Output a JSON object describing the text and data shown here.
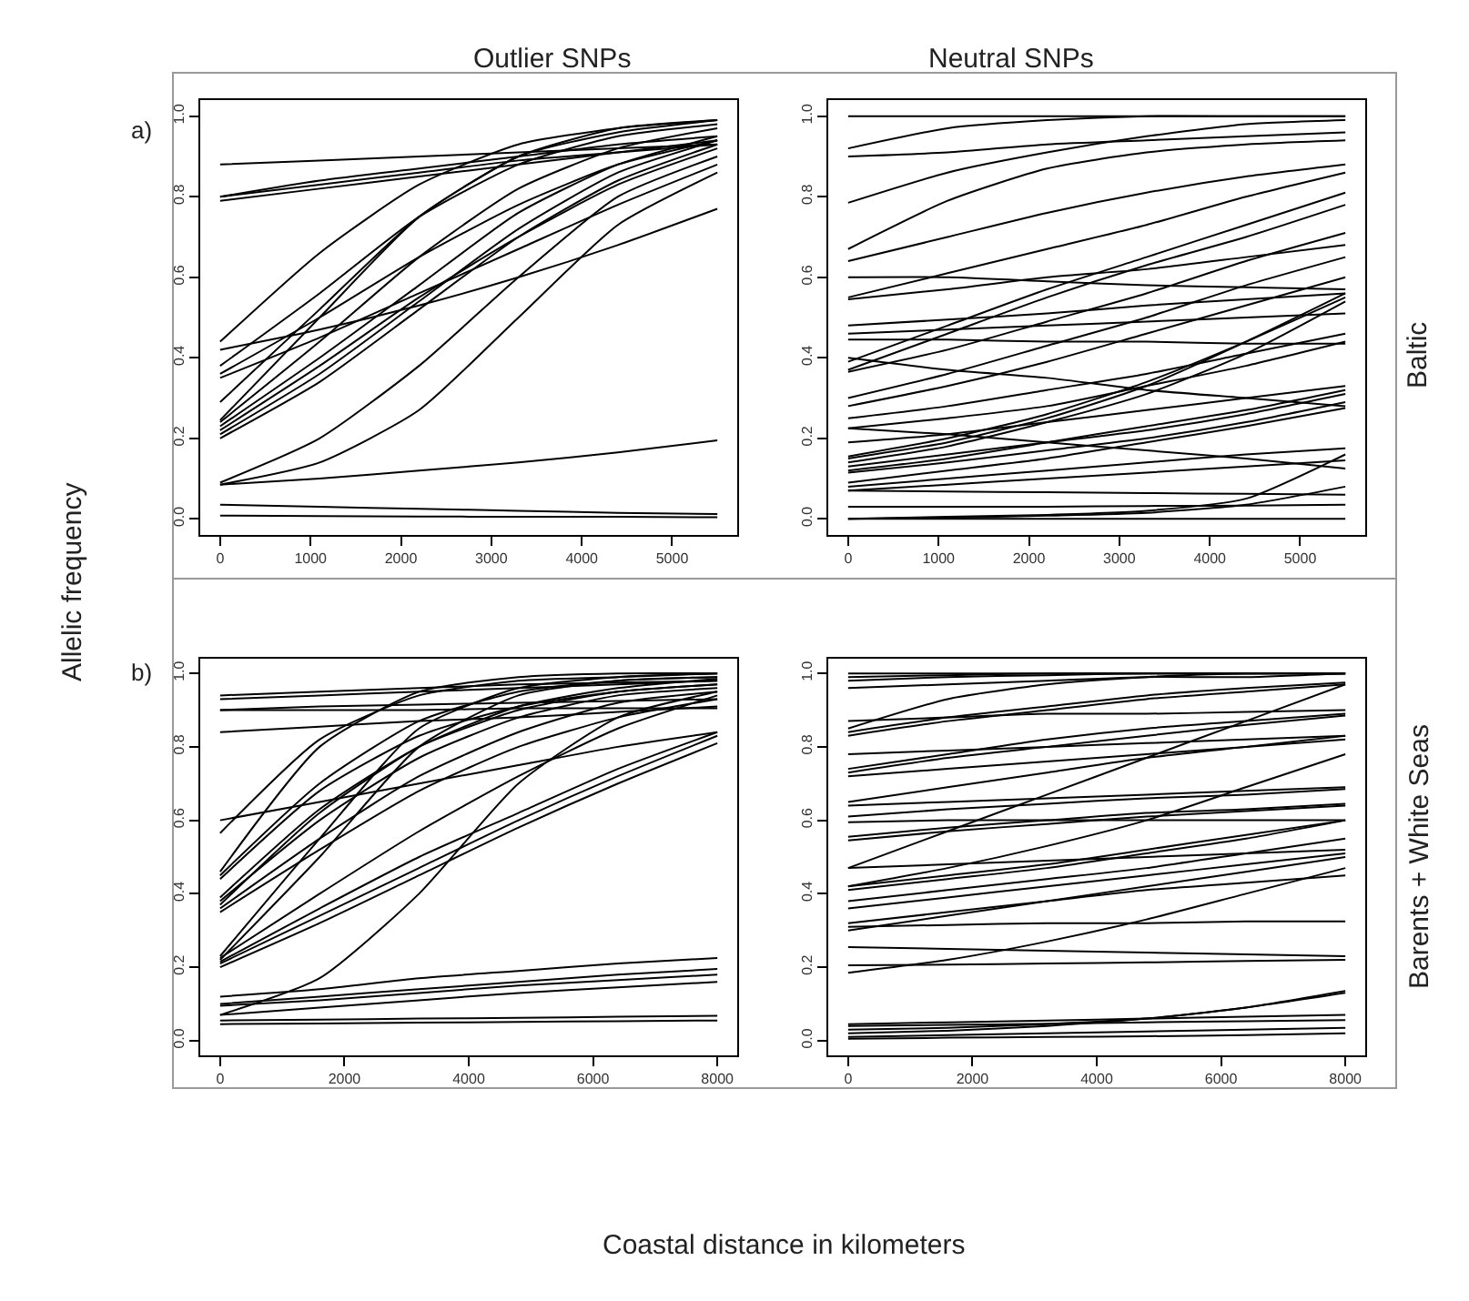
{
  "chart_data": [
    {
      "type": "line",
      "title": "Outlier SNPs",
      "ylabel": "Allelic frequency",
      "annotations": [
        "a)"
      ],
      "x": [
        0,
        1100,
        2200,
        3300,
        4400,
        5500
      ],
      "xlim": [
        -220,
        5720
      ],
      "xticks": [
        0,
        1000,
        2000,
        3000,
        4000,
        5000
      ],
      "ylim": [
        -0.04,
        1.04
      ],
      "yticks": [
        {
          "value": 0,
          "label": "0.0"
        },
        {
          "value": 0.2,
          "label": "0.2"
        },
        {
          "value": 0.4,
          "label": "0.4"
        },
        {
          "value": 0.6,
          "label": "0.6"
        },
        {
          "value": 0.8,
          "label": "0.8"
        },
        {
          "value": 1,
          "label": "1.0"
        }
      ],
      "series": [
        {
          "color": "#000000",
          "values": [
            0.88,
            0.89,
            0.9,
            0.91,
            0.92,
            0.93
          ]
        },
        {
          "color": "#000000",
          "values": [
            0.8,
            0.83,
            0.86,
            0.89,
            0.91,
            0.93
          ]
        },
        {
          "color": "#000000",
          "values": [
            0.79,
            0.82,
            0.85,
            0.88,
            0.91,
            0.94
          ]
        },
        {
          "color": "#000000",
          "values": [
            0.8,
            0.84,
            0.87,
            0.9,
            0.93,
            0.95
          ]
        },
        {
          "color": "#000000",
          "values": [
            0.44,
            0.66,
            0.83,
            0.93,
            0.97,
            0.99
          ]
        },
        {
          "color": "#000000",
          "values": [
            0.42,
            0.47,
            0.53,
            0.6,
            0.68,
            0.77
          ]
        },
        {
          "color": "#000000",
          "values": [
            0.38,
            0.56,
            0.75,
            0.88,
            0.95,
            0.98
          ]
        },
        {
          "color": "#000000",
          "values": [
            0.36,
            0.5,
            0.65,
            0.78,
            0.88,
            0.94
          ]
        },
        {
          "color": "#000000",
          "values": [
            0.35,
            0.45,
            0.56,
            0.67,
            0.78,
            0.88
          ]
        },
        {
          "color": "#000000",
          "values": [
            0.29,
            0.52,
            0.75,
            0.9,
            0.96,
            0.99
          ]
        },
        {
          "color": "#000000",
          "values": [
            0.245,
            0.5,
            0.75,
            0.9,
            0.97,
            0.99
          ]
        },
        {
          "color": "#000000",
          "values": [
            0.24,
            0.44,
            0.65,
            0.82,
            0.92,
            0.97
          ]
        },
        {
          "color": "#000000",
          "values": [
            0.23,
            0.4,
            0.58,
            0.76,
            0.88,
            0.95
          ]
        },
        {
          "color": "#000000",
          "values": [
            0.22,
            0.38,
            0.55,
            0.7,
            0.83,
            0.92
          ]
        },
        {
          "color": "#000000",
          "values": [
            0.21,
            0.36,
            0.54,
            0.72,
            0.86,
            0.94
          ]
        },
        {
          "color": "#000000",
          "values": [
            0.2,
            0.34,
            0.52,
            0.7,
            0.84,
            0.93
          ]
        },
        {
          "color": "#000000",
          "values": [
            0.09,
            0.2,
            0.38,
            0.6,
            0.8,
            0.9
          ]
        },
        {
          "color": "#000000",
          "values": [
            0.085,
            0.14,
            0.27,
            0.5,
            0.73,
            0.86
          ]
        },
        {
          "color": "#000000",
          "values": [
            0.085,
            0.1,
            0.12,
            0.14,
            0.165,
            0.195
          ]
        },
        {
          "color": "#000000",
          "values": [
            0.035,
            0.03,
            0.025,
            0.02,
            0.015,
            0.012
          ]
        },
        {
          "color": "#000000",
          "values": [
            0.008,
            0.007,
            0.006,
            0.005,
            0.005,
            0.004
          ]
        }
      ]
    },
    {
      "type": "line",
      "title": "Neutral SNPs",
      "annotations": [
        "Baltic"
      ],
      "x": [
        0,
        1100,
        2200,
        3300,
        4400,
        5500
      ],
      "xlim": [
        -220,
        5720
      ],
      "xticks": [
        0,
        1000,
        2000,
        3000,
        4000,
        5000
      ],
      "ylim": [
        -0.04,
        1.04
      ],
      "yticks": [
        {
          "value": 0,
          "label": "0.0"
        },
        {
          "value": 0.2,
          "label": "0.2"
        },
        {
          "value": 0.4,
          "label": "0.4"
        },
        {
          "value": 0.6,
          "label": "0.6"
        },
        {
          "value": 0.8,
          "label": "0.8"
        },
        {
          "value": 1,
          "label": "1.0"
        }
      ],
      "series": [
        {
          "color": "#000000",
          "values": [
            1.0,
            1.0,
            1.0,
            1.0,
            1.0,
            1.0
          ]
        },
        {
          "color": "#000000",
          "values": [
            0.92,
            0.97,
            0.99,
            1.0,
            1.0,
            1.0
          ]
        },
        {
          "color": "#000000",
          "values": [
            0.9,
            0.91,
            0.93,
            0.94,
            0.95,
            0.96
          ]
        },
        {
          "color": "#000000",
          "values": [
            0.785,
            0.86,
            0.91,
            0.95,
            0.98,
            0.99
          ]
        },
        {
          "color": "#000000",
          "values": [
            0.67,
            0.79,
            0.87,
            0.91,
            0.93,
            0.94
          ]
        },
        {
          "color": "#000000",
          "values": [
            0.64,
            0.7,
            0.76,
            0.81,
            0.85,
            0.88
          ]
        },
        {
          "color": "#000000",
          "values": [
            0.6,
            0.6,
            0.59,
            0.58,
            0.575,
            0.57
          ]
        },
        {
          "color": "#000000",
          "values": [
            0.55,
            0.61,
            0.67,
            0.73,
            0.8,
            0.86
          ]
        },
        {
          "color": "#000000",
          "values": [
            0.545,
            0.57,
            0.6,
            0.62,
            0.65,
            0.68
          ]
        },
        {
          "color": "#000000",
          "values": [
            0.48,
            0.495,
            0.51,
            0.53,
            0.545,
            0.56
          ]
        },
        {
          "color": "#000000",
          "values": [
            0.46,
            0.47,
            0.48,
            0.49,
            0.5,
            0.51
          ]
        },
        {
          "color": "#000000",
          "values": [
            0.445,
            0.445,
            0.44,
            0.44,
            0.435,
            0.435
          ]
        },
        {
          "color": "#000000",
          "values": [
            0.4,
            0.37,
            0.35,
            0.32,
            0.3,
            0.28
          ]
        },
        {
          "color": "#000000",
          "values": [
            0.39,
            0.48,
            0.57,
            0.65,
            0.73,
            0.81
          ]
        },
        {
          "color": "#000000",
          "values": [
            0.37,
            0.46,
            0.55,
            0.63,
            0.7,
            0.78
          ]
        },
        {
          "color": "#000000",
          "values": [
            0.365,
            0.42,
            0.49,
            0.56,
            0.64,
            0.71
          ]
        },
        {
          "color": "#000000",
          "values": [
            0.3,
            0.36,
            0.43,
            0.5,
            0.58,
            0.65
          ]
        },
        {
          "color": "#000000",
          "values": [
            0.28,
            0.33,
            0.39,
            0.46,
            0.53,
            0.6
          ]
        },
        {
          "color": "#000000",
          "values": [
            0.25,
            0.28,
            0.32,
            0.36,
            0.41,
            0.46
          ]
        },
        {
          "color": "#000000",
          "values": [
            0.225,
            0.25,
            0.28,
            0.33,
            0.38,
            0.44
          ]
        },
        {
          "color": "#000000",
          "values": [
            0.225,
            0.21,
            0.19,
            0.17,
            0.15,
            0.125
          ]
        },
        {
          "color": "#000000",
          "values": [
            0.19,
            0.21,
            0.24,
            0.27,
            0.3,
            0.33
          ]
        },
        {
          "color": "#000000",
          "values": [
            0.155,
            0.2,
            0.26,
            0.34,
            0.44,
            0.55
          ]
        },
        {
          "color": "#000000",
          "values": [
            0.15,
            0.19,
            0.25,
            0.33,
            0.44,
            0.56
          ]
        },
        {
          "color": "#000000",
          "values": [
            0.14,
            0.18,
            0.24,
            0.31,
            0.41,
            0.54
          ]
        },
        {
          "color": "#000000",
          "values": [
            0.13,
            0.16,
            0.19,
            0.22,
            0.26,
            0.31
          ]
        },
        {
          "color": "#000000",
          "values": [
            0.12,
            0.15,
            0.19,
            0.23,
            0.27,
            0.32
          ]
        },
        {
          "color": "#000000",
          "values": [
            0.115,
            0.14,
            0.17,
            0.2,
            0.24,
            0.29
          ]
        },
        {
          "color": "#000000",
          "values": [
            0.09,
            0.12,
            0.15,
            0.19,
            0.23,
            0.275
          ]
        },
        {
          "color": "#000000",
          "values": [
            0.08,
            0.1,
            0.12,
            0.14,
            0.16,
            0.175
          ]
        },
        {
          "color": "#000000",
          "values": [
            0.07,
            0.085,
            0.1,
            0.115,
            0.13,
            0.145
          ]
        },
        {
          "color": "#000000",
          "values": [
            0.07,
            0.068,
            0.066,
            0.064,
            0.062,
            0.06
          ]
        },
        {
          "color": "#000000",
          "values": [
            0.03,
            0.03,
            0.03,
            0.032,
            0.033,
            0.035
          ]
        },
        {
          "color": "#000000",
          "values": [
            0.0,
            0.005,
            0.01,
            0.02,
            0.05,
            0.16
          ]
        },
        {
          "color": "#000000",
          "values": [
            0.0,
            0.003,
            0.008,
            0.015,
            0.035,
            0.08
          ]
        },
        {
          "color": "#000000",
          "values": [
            0.0,
            0.0,
            0.0,
            0.0,
            0.0,
            0.0
          ]
        }
      ]
    },
    {
      "type": "line",
      "xlabel": "Coastal distance in kilometers",
      "annotations": [
        "b)"
      ],
      "x": [
        0,
        1600,
        3200,
        4800,
        6400,
        8000
      ],
      "xlim": [
        -320,
        8320
      ],
      "xticks": [
        0,
        2000,
        4000,
        6000,
        8000
      ],
      "ylim": [
        -0.04,
        1.04
      ],
      "yticks": [
        {
          "value": 0,
          "label": "0.0"
        },
        {
          "value": 0.2,
          "label": "0.2"
        },
        {
          "value": 0.4,
          "label": "0.4"
        },
        {
          "value": 0.6,
          "label": "0.6"
        },
        {
          "value": 0.8,
          "label": "0.8"
        },
        {
          "value": 1,
          "label": "1.0"
        }
      ],
      "series": [
        {
          "color": "#000000",
          "values": [
            0.94,
            0.95,
            0.96,
            0.97,
            0.975,
            0.98
          ]
        },
        {
          "color": "#000000",
          "values": [
            0.93,
            0.94,
            0.95,
            0.96,
            0.97,
            0.98
          ]
        },
        {
          "color": "#000000",
          "values": [
            0.9,
            0.9,
            0.9,
            0.905,
            0.905,
            0.905
          ]
        },
        {
          "color": "#000000",
          "values": [
            0.9,
            0.91,
            0.915,
            0.92,
            0.925,
            0.93
          ]
        },
        {
          "color": "#000000",
          "values": [
            0.84,
            0.855,
            0.87,
            0.88,
            0.895,
            0.91
          ]
        },
        {
          "color": "#000000",
          "values": [
            0.6,
            0.65,
            0.7,
            0.75,
            0.8,
            0.84
          ]
        },
        {
          "color": "#000000",
          "values": [
            0.565,
            0.82,
            0.94,
            0.98,
            0.99,
            1.0
          ]
        },
        {
          "color": "#000000",
          "values": [
            0.46,
            0.8,
            0.95,
            0.99,
            1.0,
            1.0
          ]
        },
        {
          "color": "#000000",
          "values": [
            0.45,
            0.7,
            0.87,
            0.95,
            0.98,
            0.99
          ]
        },
        {
          "color": "#000000",
          "values": [
            0.44,
            0.68,
            0.83,
            0.91,
            0.95,
            0.97
          ]
        },
        {
          "color": "#000000",
          "values": [
            0.39,
            0.63,
            0.8,
            0.9,
            0.95,
            0.97
          ]
        },
        {
          "color": "#000000",
          "values": [
            0.38,
            0.6,
            0.77,
            0.88,
            0.94,
            0.96
          ]
        },
        {
          "color": "#000000",
          "values": [
            0.37,
            0.62,
            0.8,
            0.91,
            0.96,
            0.985
          ]
        },
        {
          "color": "#000000",
          "values": [
            0.36,
            0.55,
            0.72,
            0.84,
            0.92,
            0.95
          ]
        },
        {
          "color": "#000000",
          "values": [
            0.35,
            0.52,
            0.68,
            0.8,
            0.88,
            0.93
          ]
        },
        {
          "color": "#000000",
          "values": [
            0.23,
            0.55,
            0.85,
            0.96,
            0.99,
            1.0
          ]
        },
        {
          "color": "#000000",
          "values": [
            0.22,
            0.5,
            0.8,
            0.94,
            0.98,
            0.99
          ]
        },
        {
          "color": "#000000",
          "values": [
            0.225,
            0.4,
            0.57,
            0.72,
            0.85,
            0.94
          ]
        },
        {
          "color": "#000000",
          "values": [
            0.215,
            0.36,
            0.5,
            0.62,
            0.74,
            0.84
          ]
        },
        {
          "color": "#000000",
          "values": [
            0.21,
            0.34,
            0.47,
            0.6,
            0.72,
            0.83
          ]
        },
        {
          "color": "#000000",
          "values": [
            0.2,
            0.32,
            0.45,
            0.58,
            0.7,
            0.81
          ]
        },
        {
          "color": "#000000",
          "values": [
            0.07,
            0.17,
            0.4,
            0.7,
            0.88,
            0.95
          ]
        },
        {
          "color": "#000000",
          "values": [
            0.12,
            0.14,
            0.17,
            0.19,
            0.21,
            0.225
          ]
        },
        {
          "color": "#000000",
          "values": [
            0.1,
            0.12,
            0.14,
            0.16,
            0.18,
            0.195
          ]
        },
        {
          "color": "#000000",
          "values": [
            0.095,
            0.11,
            0.13,
            0.15,
            0.165,
            0.18
          ]
        },
        {
          "color": "#000000",
          "values": [
            0.07,
            0.09,
            0.11,
            0.13,
            0.145,
            0.16
          ]
        },
        {
          "color": "#000000",
          "values": [
            0.055,
            0.057,
            0.06,
            0.062,
            0.065,
            0.068
          ]
        },
        {
          "color": "#000000",
          "values": [
            0.045,
            0.047,
            0.049,
            0.051,
            0.053,
            0.055
          ]
        }
      ]
    },
    {
      "type": "line",
      "annotations": [
        "Barents + White Seas"
      ],
      "x": [
        0,
        1600,
        3200,
        4800,
        6400,
        8000
      ],
      "xlim": [
        -320,
        8320
      ],
      "xticks": [
        0,
        2000,
        4000,
        6000,
        8000
      ],
      "ylim": [
        -0.04,
        1.04
      ],
      "yticks": [
        {
          "value": 0,
          "label": "0.0"
        },
        {
          "value": 0.2,
          "label": "0.2"
        },
        {
          "value": 0.4,
          "label": "0.4"
        },
        {
          "value": 0.6,
          "label": "0.6"
        },
        {
          "value": 0.8,
          "label": "0.8"
        },
        {
          "value": 1,
          "label": "1.0"
        }
      ],
      "series": [
        {
          "color": "#000000",
          "values": [
            1.0,
            1.0,
            1.0,
            1.0,
            1.0,
            1.0
          ]
        },
        {
          "color": "#000000",
          "values": [
            0.99,
            0.995,
            1.0,
            1.0,
            1.0,
            1.0
          ]
        },
        {
          "color": "#000000",
          "values": [
            0.98,
            0.99,
            0.995,
            1.0,
            1.0,
            1.0
          ]
        },
        {
          "color": "#000000",
          "values": [
            0.96,
            0.97,
            0.98,
            0.99,
            0.99,
            1.0
          ]
        },
        {
          "color": "#000000",
          "values": [
            0.87,
            0.88,
            0.89,
            0.89,
            0.895,
            0.9
          ]
        },
        {
          "color": "#000000",
          "values": [
            0.85,
            0.93,
            0.97,
            0.99,
            1.0,
            1.0
          ]
        },
        {
          "color": "#000000",
          "values": [
            0.84,
            0.88,
            0.91,
            0.94,
            0.96,
            0.975
          ]
        },
        {
          "color": "#000000",
          "values": [
            0.83,
            0.87,
            0.9,
            0.93,
            0.95,
            0.97
          ]
        },
        {
          "color": "#000000",
          "values": [
            0.78,
            0.79,
            0.8,
            0.81,
            0.82,
            0.83
          ]
        },
        {
          "color": "#000000",
          "values": [
            0.74,
            0.78,
            0.82,
            0.85,
            0.87,
            0.89
          ]
        },
        {
          "color": "#000000",
          "values": [
            0.73,
            0.77,
            0.8,
            0.83,
            0.86,
            0.885
          ]
        },
        {
          "color": "#000000",
          "values": [
            0.72,
            0.74,
            0.76,
            0.78,
            0.8,
            0.82
          ]
        },
        {
          "color": "#000000",
          "values": [
            0.65,
            0.69,
            0.73,
            0.77,
            0.8,
            0.83
          ]
        },
        {
          "color": "#000000",
          "values": [
            0.64,
            0.65,
            0.66,
            0.67,
            0.68,
            0.69
          ]
        },
        {
          "color": "#000000",
          "values": [
            0.61,
            0.63,
            0.645,
            0.66,
            0.67,
            0.685
          ]
        },
        {
          "color": "#000000",
          "values": [
            0.595,
            0.6,
            0.6,
            0.6,
            0.6,
            0.6
          ]
        },
        {
          "color": "#000000",
          "values": [
            0.555,
            0.58,
            0.6,
            0.62,
            0.63,
            0.645
          ]
        },
        {
          "color": "#000000",
          "values": [
            0.545,
            0.57,
            0.59,
            0.61,
            0.625,
            0.64
          ]
        },
        {
          "color": "#000000",
          "values": [
            0.47,
            0.57,
            0.67,
            0.77,
            0.87,
            0.97
          ]
        },
        {
          "color": "#000000",
          "values": [
            0.47,
            0.48,
            0.49,
            0.5,
            0.51,
            0.52
          ]
        },
        {
          "color": "#000000",
          "values": [
            0.42,
            0.47,
            0.53,
            0.6,
            0.69,
            0.78
          ]
        },
        {
          "color": "#000000",
          "values": [
            0.42,
            0.45,
            0.48,
            0.52,
            0.56,
            0.6
          ]
        },
        {
          "color": "#000000",
          "values": [
            0.41,
            0.44,
            0.47,
            0.51,
            0.55,
            0.6
          ]
        },
        {
          "color": "#000000",
          "values": [
            0.38,
            0.41,
            0.44,
            0.47,
            0.51,
            0.55
          ]
        },
        {
          "color": "#000000",
          "values": [
            0.36,
            0.39,
            0.42,
            0.45,
            0.48,
            0.51
          ]
        },
        {
          "color": "#000000",
          "values": [
            0.32,
            0.35,
            0.38,
            0.41,
            0.43,
            0.45
          ]
        },
        {
          "color": "#000000",
          "values": [
            0.31,
            0.315,
            0.32,
            0.32,
            0.325,
            0.325
          ]
        },
        {
          "color": "#000000",
          "values": [
            0.3,
            0.34,
            0.38,
            0.42,
            0.46,
            0.5
          ]
        },
        {
          "color": "#000000",
          "values": [
            0.185,
            0.22,
            0.27,
            0.33,
            0.4,
            0.47
          ]
        },
        {
          "color": "#000000",
          "values": [
            0.255,
            0.25,
            0.245,
            0.24,
            0.235,
            0.23
          ]
        },
        {
          "color": "#000000",
          "values": [
            0.205,
            0.207,
            0.21,
            0.213,
            0.217,
            0.22
          ]
        },
        {
          "color": "#000000",
          "values": [
            0.045,
            0.05,
            0.055,
            0.06,
            0.065,
            0.07
          ]
        },
        {
          "color": "#000000",
          "values": [
            0.04,
            0.043,
            0.046,
            0.05,
            0.053,
            0.056
          ]
        },
        {
          "color": "#000000",
          "values": [
            0.03,
            0.035,
            0.045,
            0.06,
            0.09,
            0.135
          ]
        },
        {
          "color": "#000000",
          "values": [
            0.02,
            0.027,
            0.04,
            0.06,
            0.09,
            0.13
          ]
        },
        {
          "color": "#000000",
          "values": [
            0.01,
            0.015,
            0.02,
            0.025,
            0.03,
            0.035
          ]
        },
        {
          "color": "#000000",
          "values": [
            0.005,
            0.008,
            0.01,
            0.012,
            0.015,
            0.02
          ]
        }
      ]
    }
  ]
}
